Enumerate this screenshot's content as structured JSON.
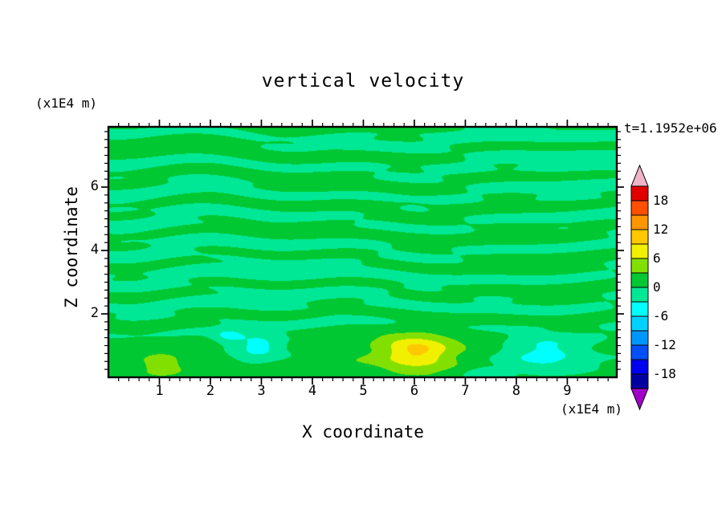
{
  "chart_data": {
    "type": "heatmap",
    "title": "vertical velocity",
    "xlabel": "X coordinate",
    "ylabel": "Z coordinate",
    "x_units": "(x1E4 m)",
    "y_units": "(x1E4 m)",
    "annotation": "t=1.1952e+06",
    "axes": {
      "xmin": 0,
      "xmax": 9.97,
      "zmin": 0,
      "zmax": 7.9,
      "x_ticks": [
        1,
        2,
        3,
        4,
        5,
        6,
        7,
        8,
        9
      ],
      "y_ticks": [
        2,
        4,
        6
      ],
      "x_minor_step": 0.2,
      "y_minor_step": 0.25,
      "grid": false
    },
    "contour": {
      "level_min": -21,
      "level_max": 21,
      "level_step": 3,
      "colorbar_labels": [
        18,
        12,
        6,
        0,
        -6,
        -12,
        -18
      ],
      "band_colors": [
        "#0000A0",
        "#0000F0",
        "#0050FF",
        "#0096FF",
        "#00D2FF",
        "#00FFFF",
        "#00E896",
        "#00C832",
        "#82E000",
        "#F0F000",
        "#FFC800",
        "#FF9600",
        "#FF5000",
        "#E10000"
      ],
      "under_color": "#A000C8",
      "over_color": "#F0B4C8",
      "legend_position": "right"
    },
    "field": {
      "description": "near-zero vertical velocity with thin horizontal streaks alternating between the -3..0 and 0..3 bands over most of the domain; smoother blobs below z=2 including a yellow maximum near x=6, a small yellow-green spot near x=1, and cyan minima near x=3 and x=8.5",
      "streaks": {
        "amp1": 1.35,
        "freq1": 7.3,
        "amp2": 0.85,
        "freq2": 12.7,
        "mod_amp": 0.55
      },
      "bottom_bias": 0.9,
      "features": [
        {
          "x": 6.05,
          "z": 0.8,
          "sx": 0.62,
          "sz": 0.5,
          "amp": 7.0,
          "note": "yellow maximum"
        },
        {
          "x": 5.95,
          "z": 0.9,
          "sx": 1.75,
          "sz": 1.05,
          "amp": 2.3,
          "note": "green halo around maximum"
        },
        {
          "x": 1.05,
          "z": 0.4,
          "sx": 0.45,
          "sz": 0.33,
          "amp": 4.2,
          "note": "small yellow-green spot"
        },
        {
          "x": 2.95,
          "z": 0.95,
          "sx": 0.5,
          "sz": 0.38,
          "amp": -5.5,
          "note": "cyan minimum"
        },
        {
          "x": 2.35,
          "z": 1.3,
          "sx": 0.3,
          "sz": 0.24,
          "amp": -3.6,
          "note": "small cyan patch"
        },
        {
          "x": 8.55,
          "z": 0.75,
          "sx": 0.85,
          "sz": 0.55,
          "amp": -5.2,
          "note": "cyan patch right side"
        },
        {
          "x": 7.35,
          "z": 0.12,
          "sx": 0.45,
          "sz": 0.3,
          "amp": -3.0,
          "note": "small cyan at bottom edge"
        }
      ]
    }
  }
}
